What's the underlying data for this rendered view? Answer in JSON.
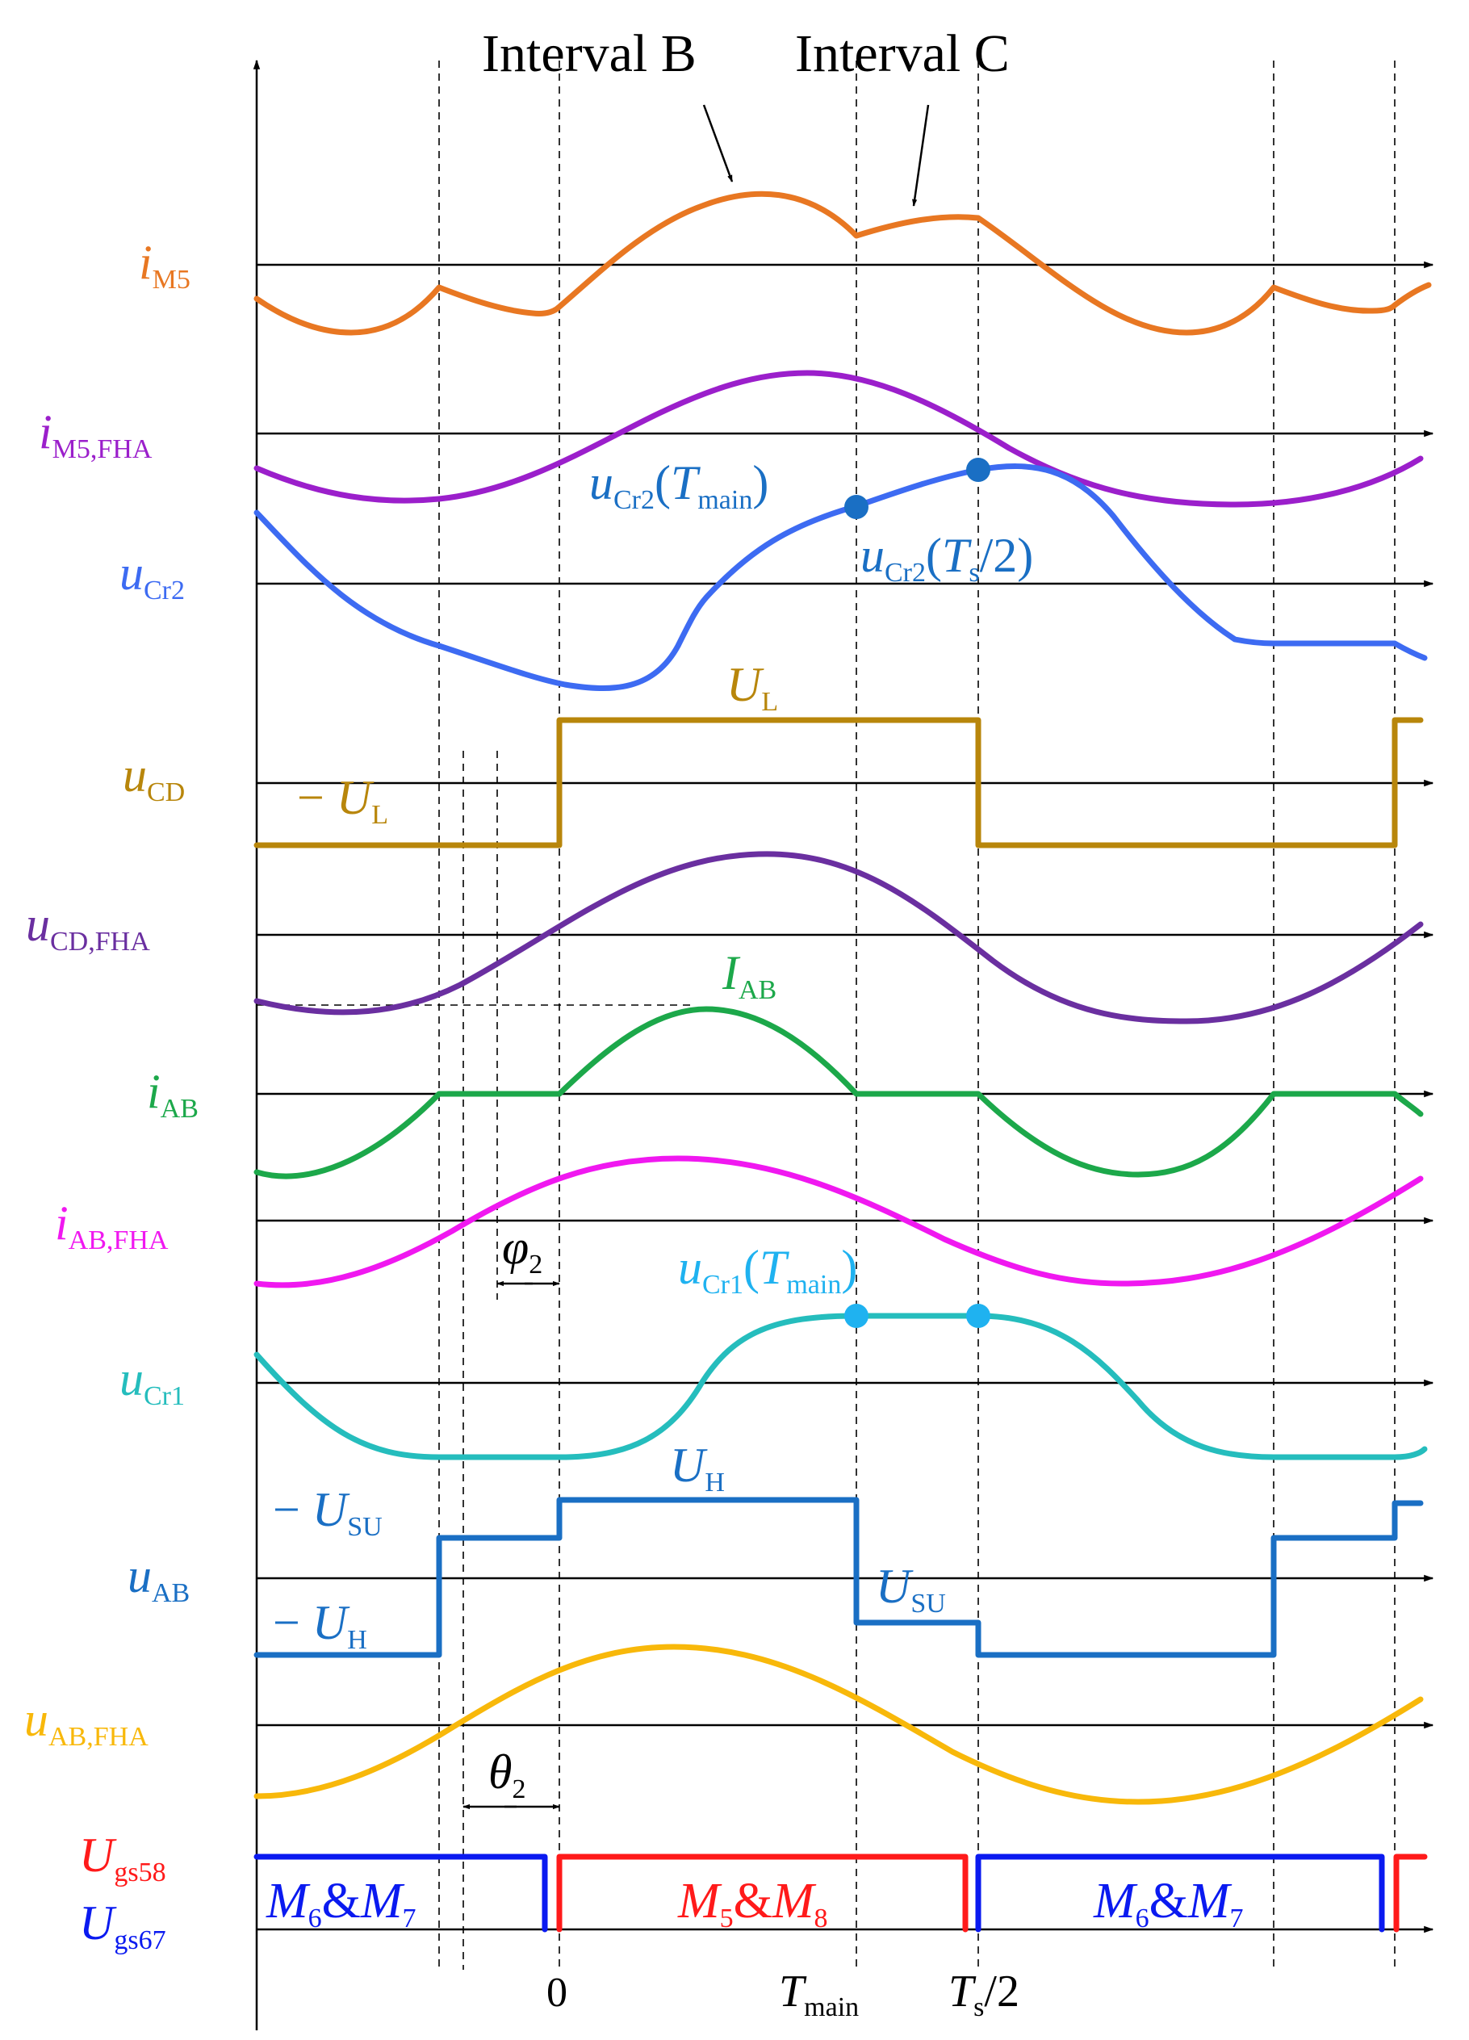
{
  "annotations": {
    "interval_b": "Interval B",
    "interval_c": "Interval C"
  },
  "colors": {
    "iM5": "#E87722",
    "iM5_fha": "#9B1FCB",
    "uCr2": "#3D6BF2",
    "uCD": "#B8860B",
    "uCD_fha": "#6A2FA0",
    "iAB": "#1CA84A",
    "iAB_fha": "#F018F0",
    "uCr1": "#25BDBD",
    "uAB": "#1A6FC4",
    "uAB_fha": "#F8B80A",
    "gate58": "#FF1A1A",
    "gate67": "#0A1AF0"
  },
  "signals": {
    "iM5": {
      "sym": "i",
      "sub": "M5"
    },
    "iM5_fha": {
      "sym": "i",
      "sub": "M5,FHA"
    },
    "uCr2": {
      "sym": "u",
      "sub": "Cr2"
    },
    "uCD": {
      "sym": "u",
      "sub": "CD"
    },
    "uCD_fha": {
      "sym": "u",
      "sub": "CD,FHA"
    },
    "iAB": {
      "sym": "i",
      "sub": "AB"
    },
    "iAB_fha": {
      "sym": "i",
      "sub": "AB,FHA"
    },
    "uCr1": {
      "sym": "u",
      "sub": "Cr1"
    },
    "uAB": {
      "sym": "u",
      "sub": "AB"
    },
    "uAB_fha": {
      "sym": "u",
      "sub": "AB,FHA"
    },
    "ugs58": {
      "sym": "U",
      "sub": "gs58"
    },
    "ugs67": {
      "sym": "U",
      "sub": "gs67"
    }
  },
  "levels": {
    "uCr2_tmain": {
      "sym": "u",
      "sub": "Cr2",
      "arg_open": "(",
      "arg_sym": "T",
      "arg_sub": "main",
      "arg_close": ")"
    },
    "uCr2_ts2": {
      "sym": "u",
      "sub": "Cr2",
      "arg_open": "(",
      "arg_sym": "T",
      "arg_sub": "s",
      "arg_close": "/2)"
    },
    "UL": {
      "sym": "U",
      "sub": "L"
    },
    "neg_UL": {
      "prefix": "− ",
      "sym": "U",
      "sub": "L"
    },
    "IAB": {
      "sym": "I",
      "sub": "AB"
    },
    "phi2": {
      "sym": "φ",
      "sub": "2"
    },
    "uCr1_tmain": {
      "sym": "u",
      "sub": "Cr1",
      "arg_open": "(",
      "arg_sym": "T",
      "arg_sub": "main",
      "arg_close": ")"
    },
    "UH": {
      "sym": "U",
      "sub": "H"
    },
    "neg_USU": {
      "prefix": "− ",
      "sym": "U",
      "sub": "SU"
    },
    "USU": {
      "sym": "U",
      "sub": "SU"
    },
    "neg_UH": {
      "prefix": "− ",
      "sym": "U",
      "sub": "H"
    },
    "theta2": {
      "sym": "θ",
      "sub": "2"
    }
  },
  "gates": {
    "m67_first": {
      "m1": "M",
      "s1": "6",
      "amp": "&",
      "m2": "M",
      "s2": "7"
    },
    "m58": {
      "m1": "M",
      "s1": "5",
      "amp": "&",
      "m2": "M",
      "s2": "8"
    },
    "m67_second": {
      "m1": "M",
      "s1": "6",
      "amp": "&",
      "m2": "M",
      "s2": "7"
    }
  },
  "time_axis": {
    "zero": "0",
    "tmain": {
      "sym": "T",
      "sub": "main"
    },
    "ts2": {
      "sym": "T",
      "sub": "s",
      "tail": "/2"
    }
  }
}
